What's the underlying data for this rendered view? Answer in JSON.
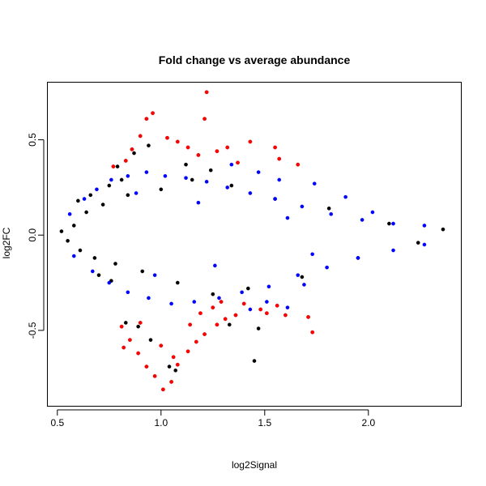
{
  "chart_data": {
    "type": "scatter",
    "title": "Fold change vs average abundance",
    "xlabel": "log2Signal",
    "ylabel": "log2FC",
    "xlim": [
      0.45,
      2.45
    ],
    "ylim": [
      -0.9,
      0.8
    ],
    "x_ticks": [
      0.5,
      1.0,
      1.5,
      2.0
    ],
    "x_tick_labels": [
      "0.5",
      "1.0",
      "1.5",
      "2.0"
    ],
    "y_ticks": [
      -0.5,
      0.0,
      0.5
    ],
    "y_tick_labels": [
      "-0.5",
      "0.0",
      "0.5"
    ],
    "grid": false,
    "legend": "none",
    "colors": {
      "black": "#000000",
      "blue": "#0000ff",
      "red": "#ff0000",
      "red_stroke": "#cc0000"
    },
    "series": [
      {
        "color_key": "black",
        "points": [
          [
            0.52,
            0.02
          ],
          [
            0.55,
            -0.03
          ],
          [
            0.58,
            0.05
          ],
          [
            0.61,
            -0.08
          ],
          [
            0.64,
            0.12
          ],
          [
            0.68,
            -0.12
          ],
          [
            0.72,
            0.16
          ],
          [
            0.78,
            -0.15
          ],
          [
            0.84,
            0.21
          ],
          [
            0.91,
            -0.19
          ],
          [
            1.0,
            0.24
          ],
          [
            1.08,
            -0.25
          ],
          [
            1.15,
            0.29
          ],
          [
            1.25,
            -0.31
          ],
          [
            1.34,
            0.26
          ],
          [
            1.42,
            -0.28
          ],
          [
            1.55,
            0.19
          ],
          [
            1.68,
            -0.22
          ],
          [
            1.81,
            0.14
          ],
          [
            1.95,
            -0.12
          ],
          [
            2.1,
            0.06
          ],
          [
            2.24,
            -0.04
          ],
          [
            2.36,
            0.03
          ],
          [
            0.89,
            -0.48
          ],
          [
            0.95,
            -0.55
          ],
          [
            1.07,
            -0.71
          ],
          [
            1.04,
            -0.69
          ],
          [
            1.45,
            -0.66
          ],
          [
            0.94,
            0.47
          ],
          [
            0.87,
            0.43
          ],
          [
            1.12,
            0.37
          ],
          [
            1.24,
            0.34
          ],
          [
            0.79,
            0.36
          ],
          [
            0.83,
            -0.46
          ],
          [
            1.33,
            -0.47
          ],
          [
            1.47,
            -0.49
          ],
          [
            0.6,
            0.18
          ],
          [
            0.66,
            0.21
          ],
          [
            0.75,
            0.26
          ],
          [
            0.81,
            0.29
          ],
          [
            0.7,
            -0.21
          ],
          [
            0.76,
            -0.24
          ]
        ]
      },
      {
        "color_key": "blue",
        "points": [
          [
            0.56,
            0.11
          ],
          [
            0.63,
            0.19
          ],
          [
            0.69,
            0.24
          ],
          [
            0.76,
            0.29
          ],
          [
            0.84,
            0.31
          ],
          [
            0.93,
            0.33
          ],
          [
            1.02,
            0.31
          ],
          [
            1.12,
            0.3
          ],
          [
            1.22,
            0.28
          ],
          [
            1.32,
            0.25
          ],
          [
            1.43,
            0.22
          ],
          [
            1.55,
            0.19
          ],
          [
            1.68,
            0.15
          ],
          [
            1.82,
            0.11
          ],
          [
            1.97,
            0.08
          ],
          [
            2.12,
            0.06
          ],
          [
            2.27,
            0.05
          ],
          [
            0.58,
            -0.11
          ],
          [
            0.67,
            -0.19
          ],
          [
            0.75,
            -0.25
          ],
          [
            0.84,
            -0.3
          ],
          [
            0.94,
            -0.33
          ],
          [
            1.05,
            -0.36
          ],
          [
            1.16,
            -0.35
          ],
          [
            1.28,
            -0.33
          ],
          [
            1.39,
            -0.3
          ],
          [
            1.52,
            -0.27
          ],
          [
            1.66,
            -0.21
          ],
          [
            1.8,
            -0.17
          ],
          [
            1.95,
            -0.12
          ],
          [
            2.12,
            -0.08
          ],
          [
            2.27,
            -0.05
          ],
          [
            0.88,
            0.22
          ],
          [
            0.97,
            -0.21
          ],
          [
            1.18,
            0.17
          ],
          [
            1.26,
            -0.16
          ],
          [
            1.61,
            0.09
          ],
          [
            1.73,
            -0.1
          ],
          [
            1.43,
            -0.39
          ],
          [
            1.51,
            -0.35
          ],
          [
            1.61,
            -0.38
          ],
          [
            1.69,
            -0.26
          ],
          [
            1.34,
            0.37
          ],
          [
            1.47,
            0.33
          ],
          [
            1.57,
            0.29
          ],
          [
            1.74,
            0.27
          ],
          [
            1.89,
            0.2
          ],
          [
            2.02,
            0.12
          ]
        ]
      },
      {
        "color_key": "red",
        "points": [
          [
            0.83,
            0.39
          ],
          [
            0.86,
            0.45
          ],
          [
            0.9,
            0.52
          ],
          [
            0.93,
            0.61
          ],
          [
            0.96,
            0.64
          ],
          [
            1.03,
            0.51
          ],
          [
            1.08,
            0.49
          ],
          [
            1.13,
            0.46
          ],
          [
            1.18,
            0.42
          ],
          [
            1.22,
            0.75
          ],
          [
            1.21,
            0.61
          ],
          [
            1.27,
            0.44
          ],
          [
            1.32,
            0.46
          ],
          [
            1.37,
            0.38
          ],
          [
            1.43,
            0.49
          ],
          [
            1.55,
            0.46
          ],
          [
            1.57,
            0.4
          ],
          [
            0.77,
            0.36
          ],
          [
            0.81,
            -0.48
          ],
          [
            0.85,
            -0.55
          ],
          [
            0.89,
            -0.62
          ],
          [
            0.93,
            -0.69
          ],
          [
            0.97,
            -0.74
          ],
          [
            1.01,
            -0.81
          ],
          [
            1.05,
            -0.77
          ],
          [
            1.08,
            -0.68
          ],
          [
            1.13,
            -0.61
          ],
          [
            1.17,
            -0.56
          ],
          [
            1.21,
            -0.52
          ],
          [
            1.27,
            -0.47
          ],
          [
            1.31,
            -0.44
          ],
          [
            1.36,
            -0.42
          ],
          [
            1.51,
            -0.41
          ],
          [
            1.6,
            -0.42
          ],
          [
            1.73,
            -0.51
          ],
          [
            0.82,
            -0.59
          ],
          [
            0.9,
            -0.46
          ],
          [
            1.0,
            -0.58
          ],
          [
            1.06,
            -0.64
          ],
          [
            1.14,
            -0.47
          ],
          [
            1.19,
            -0.41
          ],
          [
            1.25,
            -0.38
          ],
          [
            1.29,
            -0.35
          ],
          [
            1.4,
            -0.36
          ],
          [
            1.48,
            -0.39
          ],
          [
            1.56,
            -0.37
          ],
          [
            1.71,
            -0.43
          ],
          [
            1.66,
            0.37
          ]
        ]
      }
    ]
  }
}
